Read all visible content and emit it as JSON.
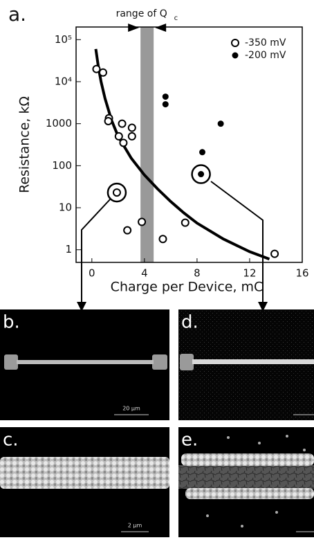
{
  "chart_data": {
    "type": "scatter",
    "panel_label": "a.",
    "band_label": "range of Q",
    "band_label_sub": "c",
    "band": [
      3.7,
      4.7
    ],
    "band_color": "#999999",
    "xlabel": "Charge per Device, mC",
    "ylabel": "Resistance, kΩ",
    "xlim": [
      -1.2,
      16
    ],
    "xticks": [
      0,
      4,
      8,
      12,
      16
    ],
    "ylim": [
      0.5,
      200000
    ],
    "log_y": true,
    "yticks": [
      1,
      10,
      100,
      1000,
      {
        "value": 10000,
        "label": "10⁴"
      },
      {
        "value": 100000,
        "label": "10⁵"
      }
    ],
    "legend": "upper right",
    "series": [
      {
        "name": "-350 mV",
        "color": "#000000",
        "marker": "open",
        "x": [
          0.35,
          0.85,
          1.3,
          1.25,
          2.05,
          2.4,
          2.3,
          3.05,
          3.05,
          2.7,
          3.8,
          5.4,
          7.1,
          13.9,
          1.9
        ],
        "values": [
          20000,
          16500,
          1350,
          1150,
          500,
          350,
          1000,
          800,
          500,
          2.9,
          4.6,
          1.8,
          4.4,
          0.8,
          23
        ]
      },
      {
        "name": "-200 mV",
        "color": "#000000",
        "marker": "filled",
        "x": [
          5.6,
          5.6,
          9.8,
          8.4,
          8.3
        ],
        "values": [
          4400,
          2900,
          1000,
          210,
          63
        ]
      }
    ],
    "fit": {
      "color": "#000000",
      "x": [
        0.3,
        0.5,
        0.7,
        1,
        1.5,
        2,
        3,
        4,
        5,
        6,
        7,
        8,
        10,
        12,
        13.5
      ],
      "values": [
        60000,
        22000,
        10000,
        4000,
        1200,
        500,
        150,
        60,
        28,
        14,
        7.5,
        4.3,
        1.8,
        0.9,
        0.6
      ]
    },
    "circled": [
      {
        "series": 0,
        "index": 14
      },
      {
        "series": 1,
        "index": 4
      }
    ]
  },
  "panels": [
    {
      "label": "b.",
      "scale": "20 µm"
    },
    {
      "label": "c.",
      "scale": "2 µm"
    },
    {
      "label": "d."
    },
    {
      "label": "e."
    }
  ]
}
